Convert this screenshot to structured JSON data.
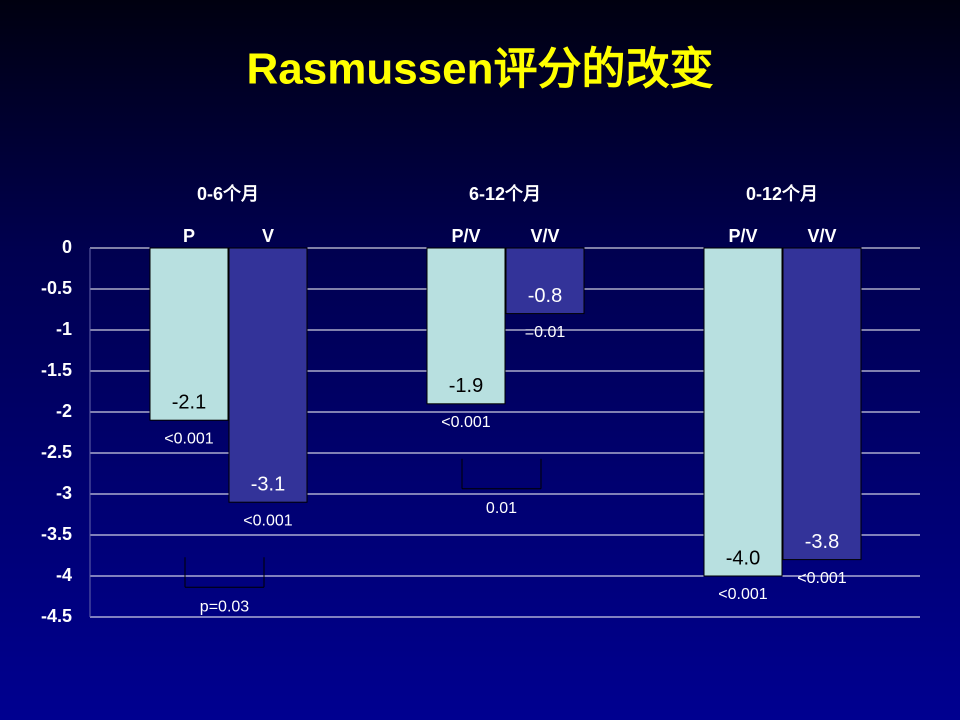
{
  "chart_data": {
    "type": "bar",
    "title": "Rasmussen评分的改变",
    "ylim": [
      -4.5,
      0
    ],
    "yticks": [
      0,
      -0.5,
      -1,
      -1.5,
      -2,
      -2.5,
      -3,
      -3.5,
      -4,
      -4.5
    ],
    "grid": true,
    "colors": [
      "#b8e0e0",
      "#333399"
    ],
    "groups": [
      {
        "name": "0-6个月",
        "categories": [
          "P",
          "V"
        ],
        "values": [
          -2.1,
          -3.1
        ],
        "value_labels": [
          "-2.1",
          "-3.1"
        ],
        "p_values": [
          "<0.001",
          "<0.001"
        ],
        "comparison": "p=0.03"
      },
      {
        "name": "6-12个月",
        "categories": [
          "P/V",
          "V/V"
        ],
        "values": [
          -1.9,
          -0.8
        ],
        "value_labels": [
          "-1.9",
          "-0.8"
        ],
        "p_values": [
          "<0.001",
          "=0.01"
        ],
        "comparison": "0.01"
      },
      {
        "name": "0-12个月",
        "categories": [
          "P/V",
          "V/V"
        ],
        "values": [
          -4.0,
          -3.8
        ],
        "value_labels": [
          "-4.0",
          "-3.8"
        ],
        "p_values": [
          "<0.001",
          "<0.001"
        ]
      }
    ]
  }
}
